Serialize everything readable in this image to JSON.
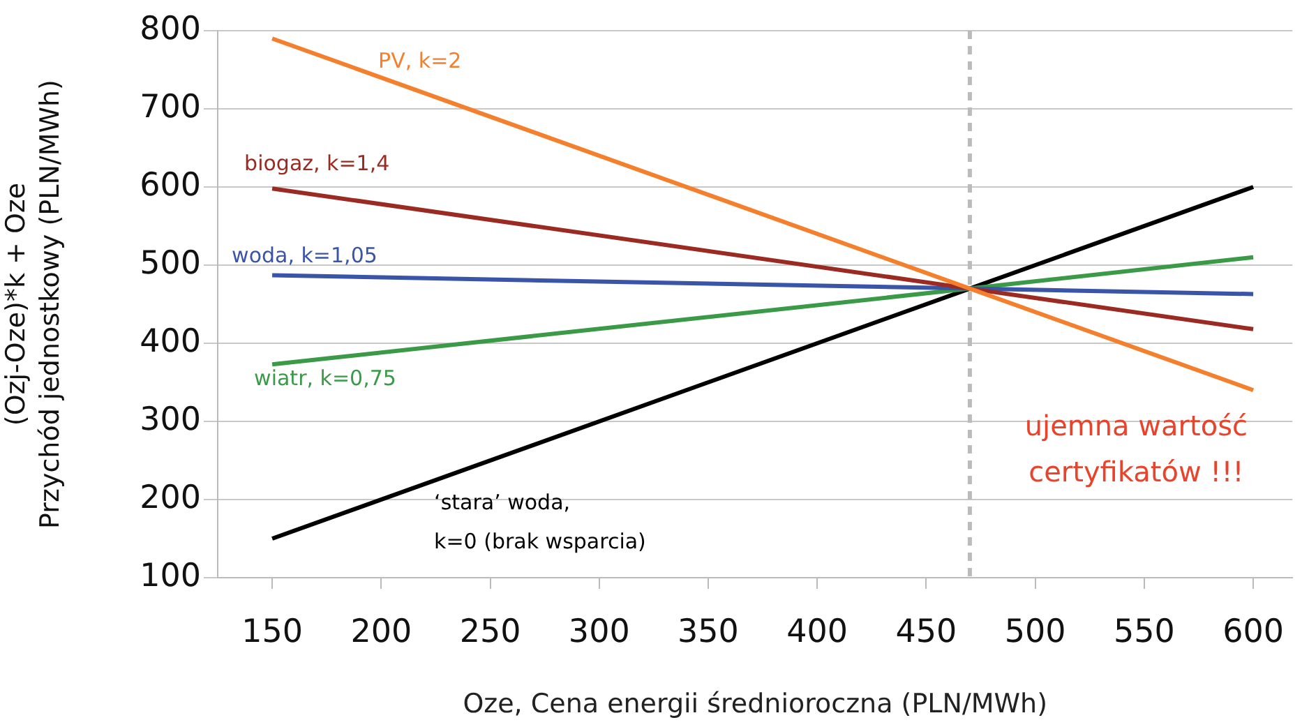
{
  "chart_data": {
    "type": "line",
    "xlabel": "Oze, Cena energii średnioroczna (PLN/MWh)",
    "ylabel": "(Ozj-Oze)*k + Oze\nPrzychód jednostkowy (PLN/MWh)",
    "x": [
      150,
      470,
      600
    ],
    "series": [
      {
        "name": "PV, k=2",
        "color": "#f47f2c",
        "values": [
          790,
          470,
          340
        ]
      },
      {
        "name": "biogaz, k=1,4",
        "color": "#9a2a22",
        "values": [
          598,
          470,
          418
        ]
      },
      {
        "name": "woda, k=1,05",
        "color": "#3a55a8",
        "values": [
          487,
          470,
          463
        ]
      },
      {
        "name": "wiatr, k=0,75",
        "color": "#3a9a48",
        "values": [
          373,
          470,
          510
        ]
      },
      {
        "name": "‘stara’ woda,\nk=0 (brak wsparcia)",
        "color": "#000000",
        "values": [
          150,
          470,
          600
        ]
      }
    ],
    "xlim": [
      125,
      618
    ],
    "xticks": [
      150,
      200,
      250,
      300,
      350,
      400,
      450,
      500,
      550,
      600
    ],
    "ylim": [
      100,
      800
    ],
    "yticks": [
      100,
      200,
      300,
      400,
      500,
      600,
      700,
      800
    ],
    "grid": "y",
    "legend": false,
    "marker": "none",
    "line_style": "solid",
    "ref_lines": [
      {
        "axis": "x",
        "value": 470,
        "color": "#bbbbbb",
        "line_style": "dashed"
      }
    ],
    "annotations": [
      "ujemna wartość\ncertyfikatów !!!"
    ]
  }
}
